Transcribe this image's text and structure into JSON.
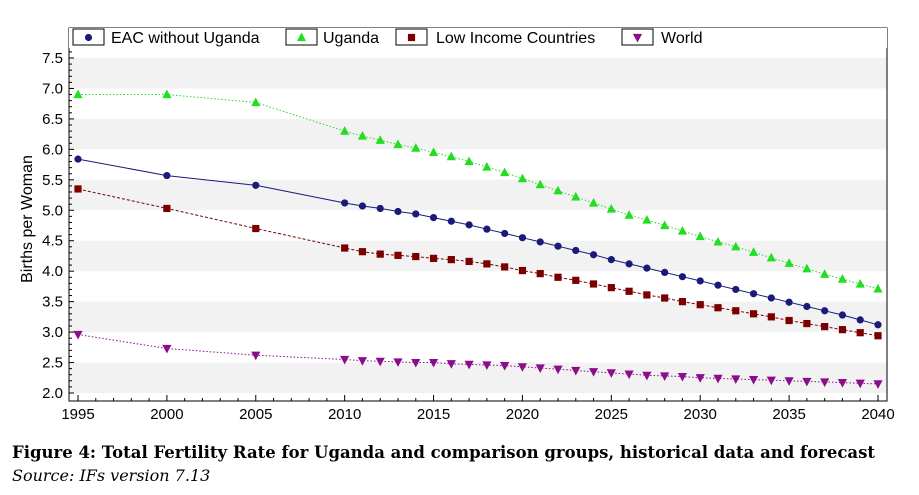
{
  "chart_data": {
    "type": "line",
    "title": "",
    "xlabel": "",
    "ylabel": "Births per Woman",
    "xlim": [
      1995,
      2040
    ],
    "ylim": [
      1.9,
      7.7
    ],
    "grid": "horizontal-bands",
    "legend_position": "top",
    "x_ticks": [
      "1995",
      "2000",
      "2005",
      "2010",
      "2015",
      "2020",
      "2025",
      "2030",
      "2035",
      "2040"
    ],
    "y_ticks": [
      "2.0",
      "2.5",
      "3.0",
      "3.5",
      "4.0",
      "4.5",
      "5.0",
      "5.5",
      "6.0",
      "6.5",
      "7.0",
      "7.5"
    ],
    "x": [
      1995,
      2000,
      2005,
      2010,
      2011,
      2012,
      2013,
      2014,
      2015,
      2016,
      2017,
      2018,
      2019,
      2020,
      2021,
      2022,
      2023,
      2024,
      2025,
      2026,
      2027,
      2028,
      2029,
      2030,
      2031,
      2032,
      2033,
      2034,
      2035,
      2036,
      2037,
      2038,
      2039,
      2040
    ],
    "series": [
      {
        "name": "EAC without Uganda",
        "color": "#1a1a7a",
        "marker": "circle",
        "line": "solid",
        "values": [
          5.84,
          5.57,
          5.41,
          5.12,
          5.07,
          5.03,
          4.98,
          4.94,
          4.88,
          4.82,
          4.76,
          4.69,
          4.62,
          4.55,
          4.48,
          4.41,
          4.34,
          4.27,
          4.19,
          4.12,
          4.05,
          3.98,
          3.91,
          3.84,
          3.77,
          3.7,
          3.63,
          3.56,
          3.49,
          3.42,
          3.35,
          3.28,
          3.2,
          3.12
        ]
      },
      {
        "name": "Uganda",
        "color": "#22dd22",
        "marker": "triangle-up",
        "line": "dotted",
        "values": [
          6.9,
          6.9,
          6.77,
          6.3,
          6.22,
          6.15,
          6.08,
          6.02,
          5.95,
          5.88,
          5.8,
          5.71,
          5.62,
          5.52,
          5.42,
          5.32,
          5.22,
          5.12,
          5.02,
          4.92,
          4.84,
          4.75,
          4.66,
          4.57,
          4.48,
          4.4,
          4.31,
          4.22,
          4.13,
          4.04,
          3.95,
          3.87,
          3.79,
          3.71
        ]
      },
      {
        "name": "Low Income Countries",
        "color": "#7a0000",
        "marker": "square",
        "line": "dashed",
        "values": [
          5.35,
          5.03,
          4.7,
          4.38,
          4.32,
          4.28,
          4.26,
          4.24,
          4.21,
          4.19,
          4.16,
          4.12,
          4.07,
          4.01,
          3.96,
          3.9,
          3.85,
          3.79,
          3.73,
          3.67,
          3.61,
          3.56,
          3.5,
          3.45,
          3.4,
          3.35,
          3.3,
          3.25,
          3.19,
          3.14,
          3.09,
          3.04,
          2.99,
          2.94
        ]
      },
      {
        "name": "World",
        "color": "#8a0e8a",
        "marker": "triangle-down",
        "line": "dotted",
        "values": [
          2.96,
          2.73,
          2.62,
          2.55,
          2.53,
          2.52,
          2.51,
          2.5,
          2.5,
          2.48,
          2.47,
          2.46,
          2.45,
          2.43,
          2.41,
          2.39,
          2.37,
          2.35,
          2.33,
          2.31,
          2.29,
          2.28,
          2.27,
          2.25,
          2.24,
          2.23,
          2.22,
          2.21,
          2.2,
          2.19,
          2.18,
          2.17,
          2.16,
          2.15
        ]
      }
    ]
  },
  "caption": "Figure 4: Total Fertility Rate for Uganda and comparison groups, historical data and forecast",
  "source": "Source: IFs version 7.13"
}
